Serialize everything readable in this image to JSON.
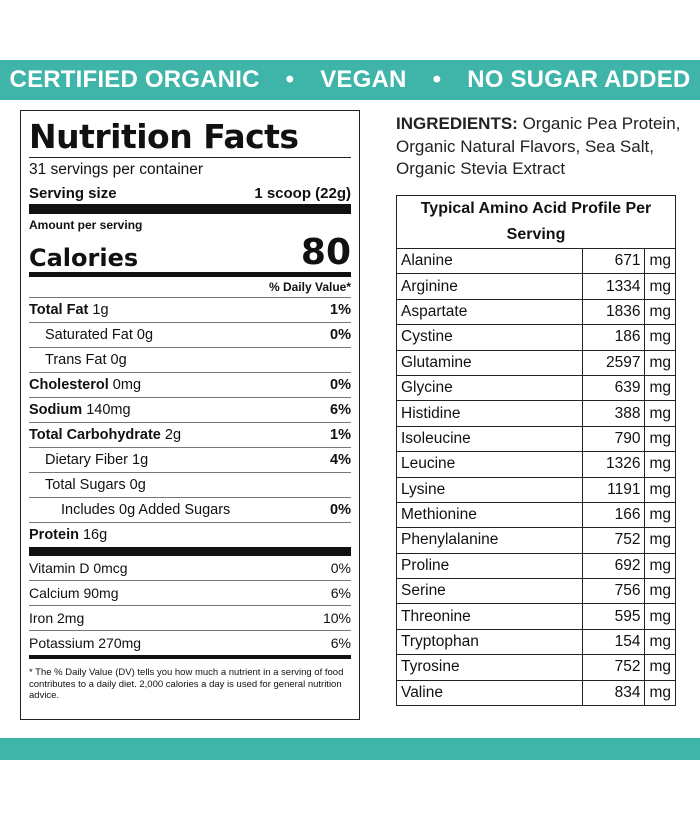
{
  "banner": {
    "items": [
      "CERTIFIED ORGANIC",
      "VEGAN",
      "NO SUGAR ADDED"
    ],
    "separator": "•"
  },
  "nutrition": {
    "title": "Nutrition Facts",
    "servings": "31 servings per container",
    "serving_size_label": "Serving size",
    "serving_size_value": "1 scoop (22g)",
    "amount_per_serving": "Amount per serving",
    "calories_label": "Calories",
    "calories_value": "80",
    "dv_header": "% Daily Value*",
    "rows": [
      {
        "name": "Total Fat",
        "amount": "1g",
        "dv": "1%",
        "bold": true,
        "indent": 0
      },
      {
        "name": "Saturated Fat",
        "amount": "0g",
        "dv": "0%",
        "bold": false,
        "indent": 1
      },
      {
        "name": "Trans Fat",
        "amount": "0g",
        "dv": "",
        "bold": false,
        "indent": 1
      },
      {
        "name": "Cholesterol",
        "amount": "0mg",
        "dv": "0%",
        "bold": true,
        "indent": 0
      },
      {
        "name": "Sodium",
        "amount": "140mg",
        "dv": "6%",
        "bold": true,
        "indent": 0
      },
      {
        "name": "Total Carbohydrate",
        "amount": "2g",
        "dv": "1%",
        "bold": true,
        "indent": 0
      },
      {
        "name": "Dietary Fiber",
        "amount": "1g",
        "dv": "4%",
        "bold": false,
        "indent": 1
      },
      {
        "name": "Total Sugars",
        "amount": "0g",
        "dv": "",
        "bold": false,
        "indent": 1
      },
      {
        "name": "Includes 0g Added Sugars",
        "amount": "",
        "dv": "0%",
        "bold": false,
        "indent": 2
      },
      {
        "name": "Protein",
        "amount": "16g",
        "dv": "",
        "bold": true,
        "indent": 0
      }
    ],
    "vitamins": [
      {
        "name": "Vitamin D 0mcg",
        "dv": "0%"
      },
      {
        "name": "Calcium 90mg",
        "dv": "6%"
      },
      {
        "name": "Iron 2mg",
        "dv": "10%"
      },
      {
        "name": "Potassium 270mg",
        "dv": "6%"
      }
    ],
    "footnote": "* The % Daily Value (DV) tells you how much a nutrient in a serving of food contributes to a daily diet. 2,000 calories a day is used for general nutrition advice."
  },
  "ingredients": {
    "label": "INGREDIENTS:",
    "text": "Organic Pea Protein, Organic Natural Flavors, Sea Salt, Organic Stevia Extract"
  },
  "amino": {
    "title": "Typical Amino Acid Profile Per Serving",
    "unit": "mg",
    "rows": [
      {
        "name": "Alanine",
        "value": "671"
      },
      {
        "name": "Arginine",
        "value": "1334"
      },
      {
        "name": "Aspartate",
        "value": "1836"
      },
      {
        "name": "Cystine",
        "value": "186"
      },
      {
        "name": "Glutamine",
        "value": "2597"
      },
      {
        "name": "Glycine",
        "value": "639"
      },
      {
        "name": "Histidine",
        "value": "388"
      },
      {
        "name": "Isoleucine",
        "value": "790"
      },
      {
        "name": "Leucine",
        "value": "1326"
      },
      {
        "name": "Lysine",
        "value": "1191"
      },
      {
        "name": "Methionine",
        "value": "166"
      },
      {
        "name": "Phenylalanine",
        "value": "752"
      },
      {
        "name": "Proline",
        "value": "692"
      },
      {
        "name": "Serine",
        "value": "756"
      },
      {
        "name": "Threonine",
        "value": "595"
      },
      {
        "name": "Tryptophan",
        "value": "154"
      },
      {
        "name": "Tyrosine",
        "value": "752"
      },
      {
        "name": "Valine",
        "value": "834"
      }
    ]
  },
  "colors": {
    "accent": "#3fb5a9"
  }
}
